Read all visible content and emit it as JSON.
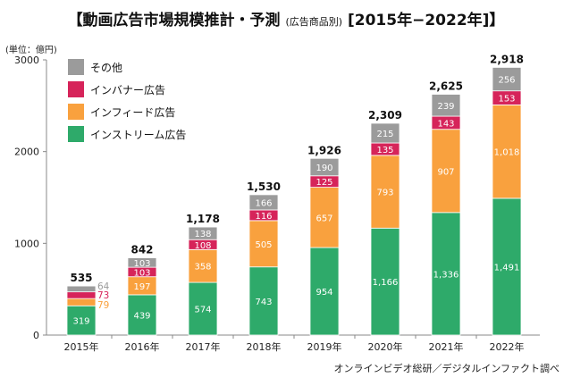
{
  "chart_data": {
    "type": "bar",
    "stacked": true,
    "title": "【動画広告市場規模推計・予測",
    "title_sub": "(広告商品別)",
    "title_range": "[2015年−2022年]】",
    "ylabel": "(単位：億円)",
    "ylim": [
      0,
      3000
    ],
    "yticks": [
      0,
      1000,
      2000,
      3000
    ],
    "grid": false,
    "legend_placement": "top-left",
    "categories": [
      "2015年",
      "2016年",
      "2017年",
      "2018年",
      "2019年",
      "2020年",
      "2021年",
      "2022年"
    ],
    "series": [
      {
        "name": "インストリーム広告",
        "color": "#2eaa6a",
        "labels": [
          "319",
          "439",
          "574",
          "743",
          "954",
          "1,166",
          "1,336",
          "1,491"
        ],
        "values": [
          319,
          439,
          574,
          743,
          954,
          1166,
          1336,
          1491
        ]
      },
      {
        "name": "インフィード広告",
        "color": "#f9a13e",
        "labels": [
          "79",
          "197",
          "358",
          "505",
          "657",
          "793",
          "907",
          "1,018"
        ],
        "values": [
          79,
          197,
          358,
          505,
          657,
          793,
          907,
          1018
        ]
      },
      {
        "name": "インバナー広告",
        "color": "#d6245a",
        "labels": [
          "73",
          "103",
          "108",
          "116",
          "125",
          "135",
          "143",
          "153"
        ],
        "values": [
          73,
          103,
          108,
          116,
          125,
          135,
          143,
          153
        ]
      },
      {
        "name": "その他",
        "color": "#9b9b9b",
        "labels": [
          "64",
          "103",
          "138",
          "166",
          "190",
          "215",
          "239",
          "256"
        ],
        "values": [
          64,
          103,
          138,
          166,
          190,
          215,
          239,
          256
        ]
      }
    ],
    "totals": [
      "535",
      "842",
      "1,178",
      "1,530",
      "1,926",
      "2,309",
      "2,625",
      "2,918"
    ],
    "source": "オンラインビデオ総研／デジタルインファクト調べ"
  }
}
